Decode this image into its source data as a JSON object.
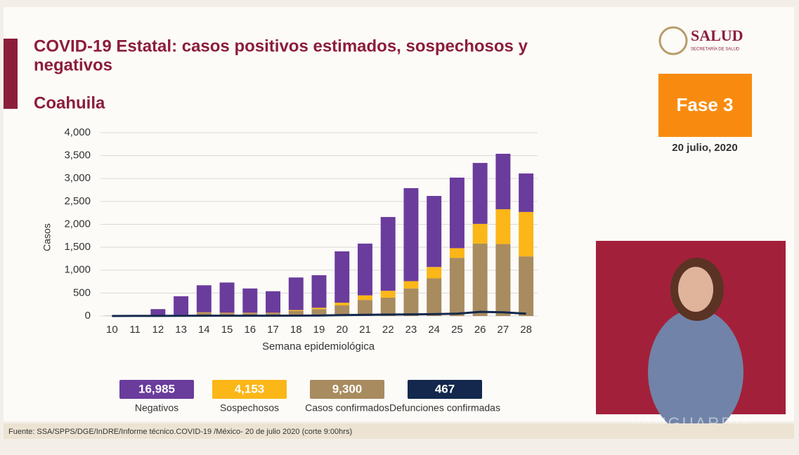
{
  "header": {
    "title_line1": "COVID-19 Estatal: casos positivos estimados, sospechosos y",
    "title_line2": "negativos",
    "state": "Coahuila",
    "logo": "SALUD",
    "logo_sub": "SECRETARÍA DE SALUD",
    "phase": "Fase 3",
    "date": "20 julio, 2020"
  },
  "chart_data": {
    "type": "stacked-bar-line",
    "x_label": "Semana epidemiológica",
    "y_label": "Casos",
    "categories": [
      "10",
      "11",
      "12",
      "13",
      "14",
      "15",
      "16",
      "17",
      "18",
      "19",
      "20",
      "21",
      "22",
      "23",
      "24",
      "25",
      "26",
      "27",
      "28"
    ],
    "series": [
      {
        "name": "Casos confirmados",
        "color": "#a88b5f",
        "values": [
          2,
          5,
          10,
          20,
          70,
          60,
          60,
          60,
          110,
          150,
          230,
          350,
          400,
          600,
          820,
          1270,
          1580,
          1570,
          1300
        ]
      },
      {
        "name": "Sospechosos",
        "color": "#fbb617",
        "values": [
          1,
          2,
          5,
          5,
          10,
          10,
          10,
          10,
          20,
          30,
          60,
          100,
          150,
          160,
          250,
          210,
          430,
          760,
          970
        ]
      },
      {
        "name": "Negativos",
        "color": "#6a3c9c",
        "values": [
          2,
          3,
          135,
          405,
          590,
          660,
          530,
          470,
          710,
          710,
          1120,
          1130,
          1610,
          2030,
          1550,
          1540,
          1330,
          1210,
          840
        ]
      },
      {
        "name": "Defunciones confirmadas",
        "color": "#13284c",
        "kind": "line",
        "values": [
          0,
          1,
          2,
          3,
          5,
          5,
          5,
          5,
          8,
          10,
          20,
          25,
          30,
          35,
          40,
          50,
          90,
          80,
          50
        ]
      }
    ],
    "ylim": [
      0,
      4000
    ],
    "yticks": [
      0,
      500,
      {
        "value": 1000,
        "label": "1,000"
      },
      {
        "value": 1500,
        "label": "1,500"
      },
      {
        "value": 2000,
        "label": "2,000"
      },
      {
        "value": 2500,
        "label": "2,500"
      },
      {
        "value": 3000,
        "label": "3,000"
      },
      {
        "value": 3500,
        "label": "3,500"
      },
      {
        "value": 4000,
        "label": "4,000"
      }
    ],
    "grid": true
  },
  "summary": [
    "16,985",
    "4,153",
    "9,300",
    "467"
  ],
  "source": "Fuente: SSA/SPPS/DGE/InDRE/Informe técnico.COVID-19 /México- 20 de julio 2020 (corte 9:00hrs)",
  "watermark": "VANGUARDIA"
}
